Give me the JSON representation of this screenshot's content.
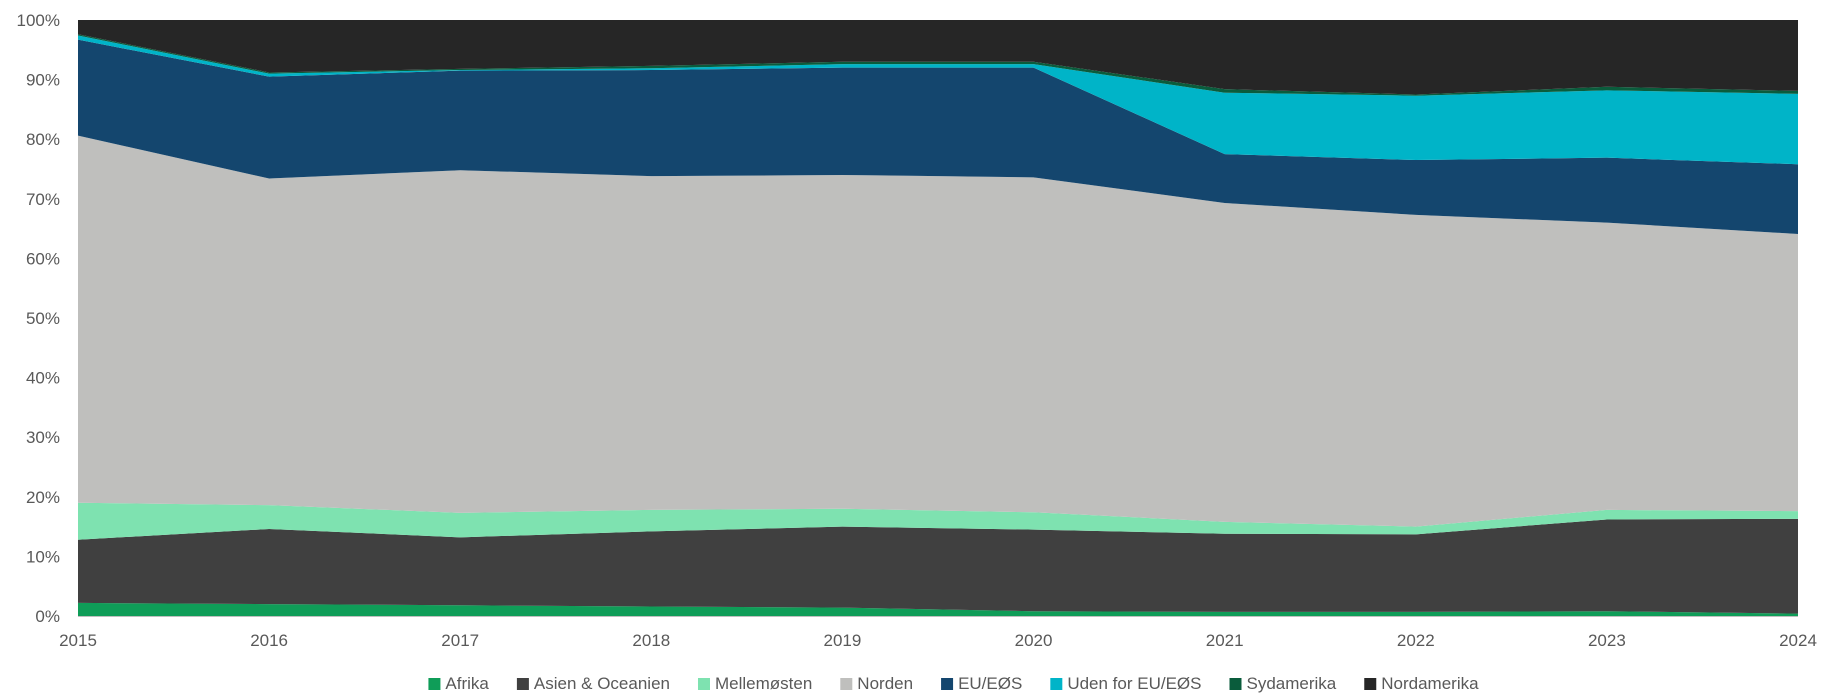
{
  "chart_data": {
    "type": "area",
    "stacked": true,
    "normalized": true,
    "x": [
      "2015",
      "2016",
      "2017",
      "2018",
      "2019",
      "2020",
      "2021",
      "2022",
      "2023",
      "2024"
    ],
    "ylim": [
      0,
      100
    ],
    "yticks": [
      "0%",
      "10%",
      "20%",
      "30%",
      "40%",
      "50%",
      "60%",
      "70%",
      "80%",
      "90%",
      "100%"
    ],
    "grid": false,
    "legend": "bottom",
    "series": [
      {
        "name": "Afrika",
        "color": "#0f9d58",
        "values": [
          2.2,
          2.0,
          1.8,
          1.6,
          1.4,
          0.8,
          0.7,
          0.7,
          0.8,
          0.4
        ]
      },
      {
        "name": "Asien & Oceanien",
        "color": "#404040",
        "values": [
          10.6,
          12.6,
          11.4,
          12.6,
          13.6,
          13.7,
          13.1,
          13.0,
          15.4,
          15.9
        ]
      },
      {
        "name": "Mellemøsten",
        "color": "#7ee2b0",
        "values": [
          6.2,
          4.0,
          4.1,
          3.6,
          3.0,
          2.9,
          2.0,
          1.3,
          1.6,
          1.3
        ]
      },
      {
        "name": "Norden",
        "color": "#bfbfbd",
        "values": [
          61.6,
          54.8,
          57.5,
          56.0,
          56.0,
          56.2,
          53.5,
          52.3,
          48.2,
          46.5
        ]
      },
      {
        "name": "EU/EØS",
        "color": "#14466e",
        "values": [
          16.1,
          17.1,
          16.7,
          17.8,
          18.0,
          18.4,
          8.2,
          9.2,
          10.9,
          11.7
        ]
      },
      {
        "name": "Uden for EU/EØS",
        "color": "#00b4c8",
        "values": [
          0.7,
          0.5,
          0.1,
          0.3,
          0.6,
          0.6,
          10.3,
          10.8,
          11.3,
          11.8
        ]
      },
      {
        "name": "Sydamerika",
        "color": "#0a5c3c",
        "values": [
          0.2,
          0.2,
          0.2,
          0.4,
          0.4,
          0.4,
          0.6,
          0.2,
          0.6,
          0.5
        ]
      },
      {
        "name": "Nordamerika",
        "color": "#262626",
        "values": [
          2.4,
          8.8,
          8.2,
          7.7,
          7.0,
          7.0,
          11.6,
          12.5,
          11.2,
          11.9
        ]
      }
    ]
  }
}
